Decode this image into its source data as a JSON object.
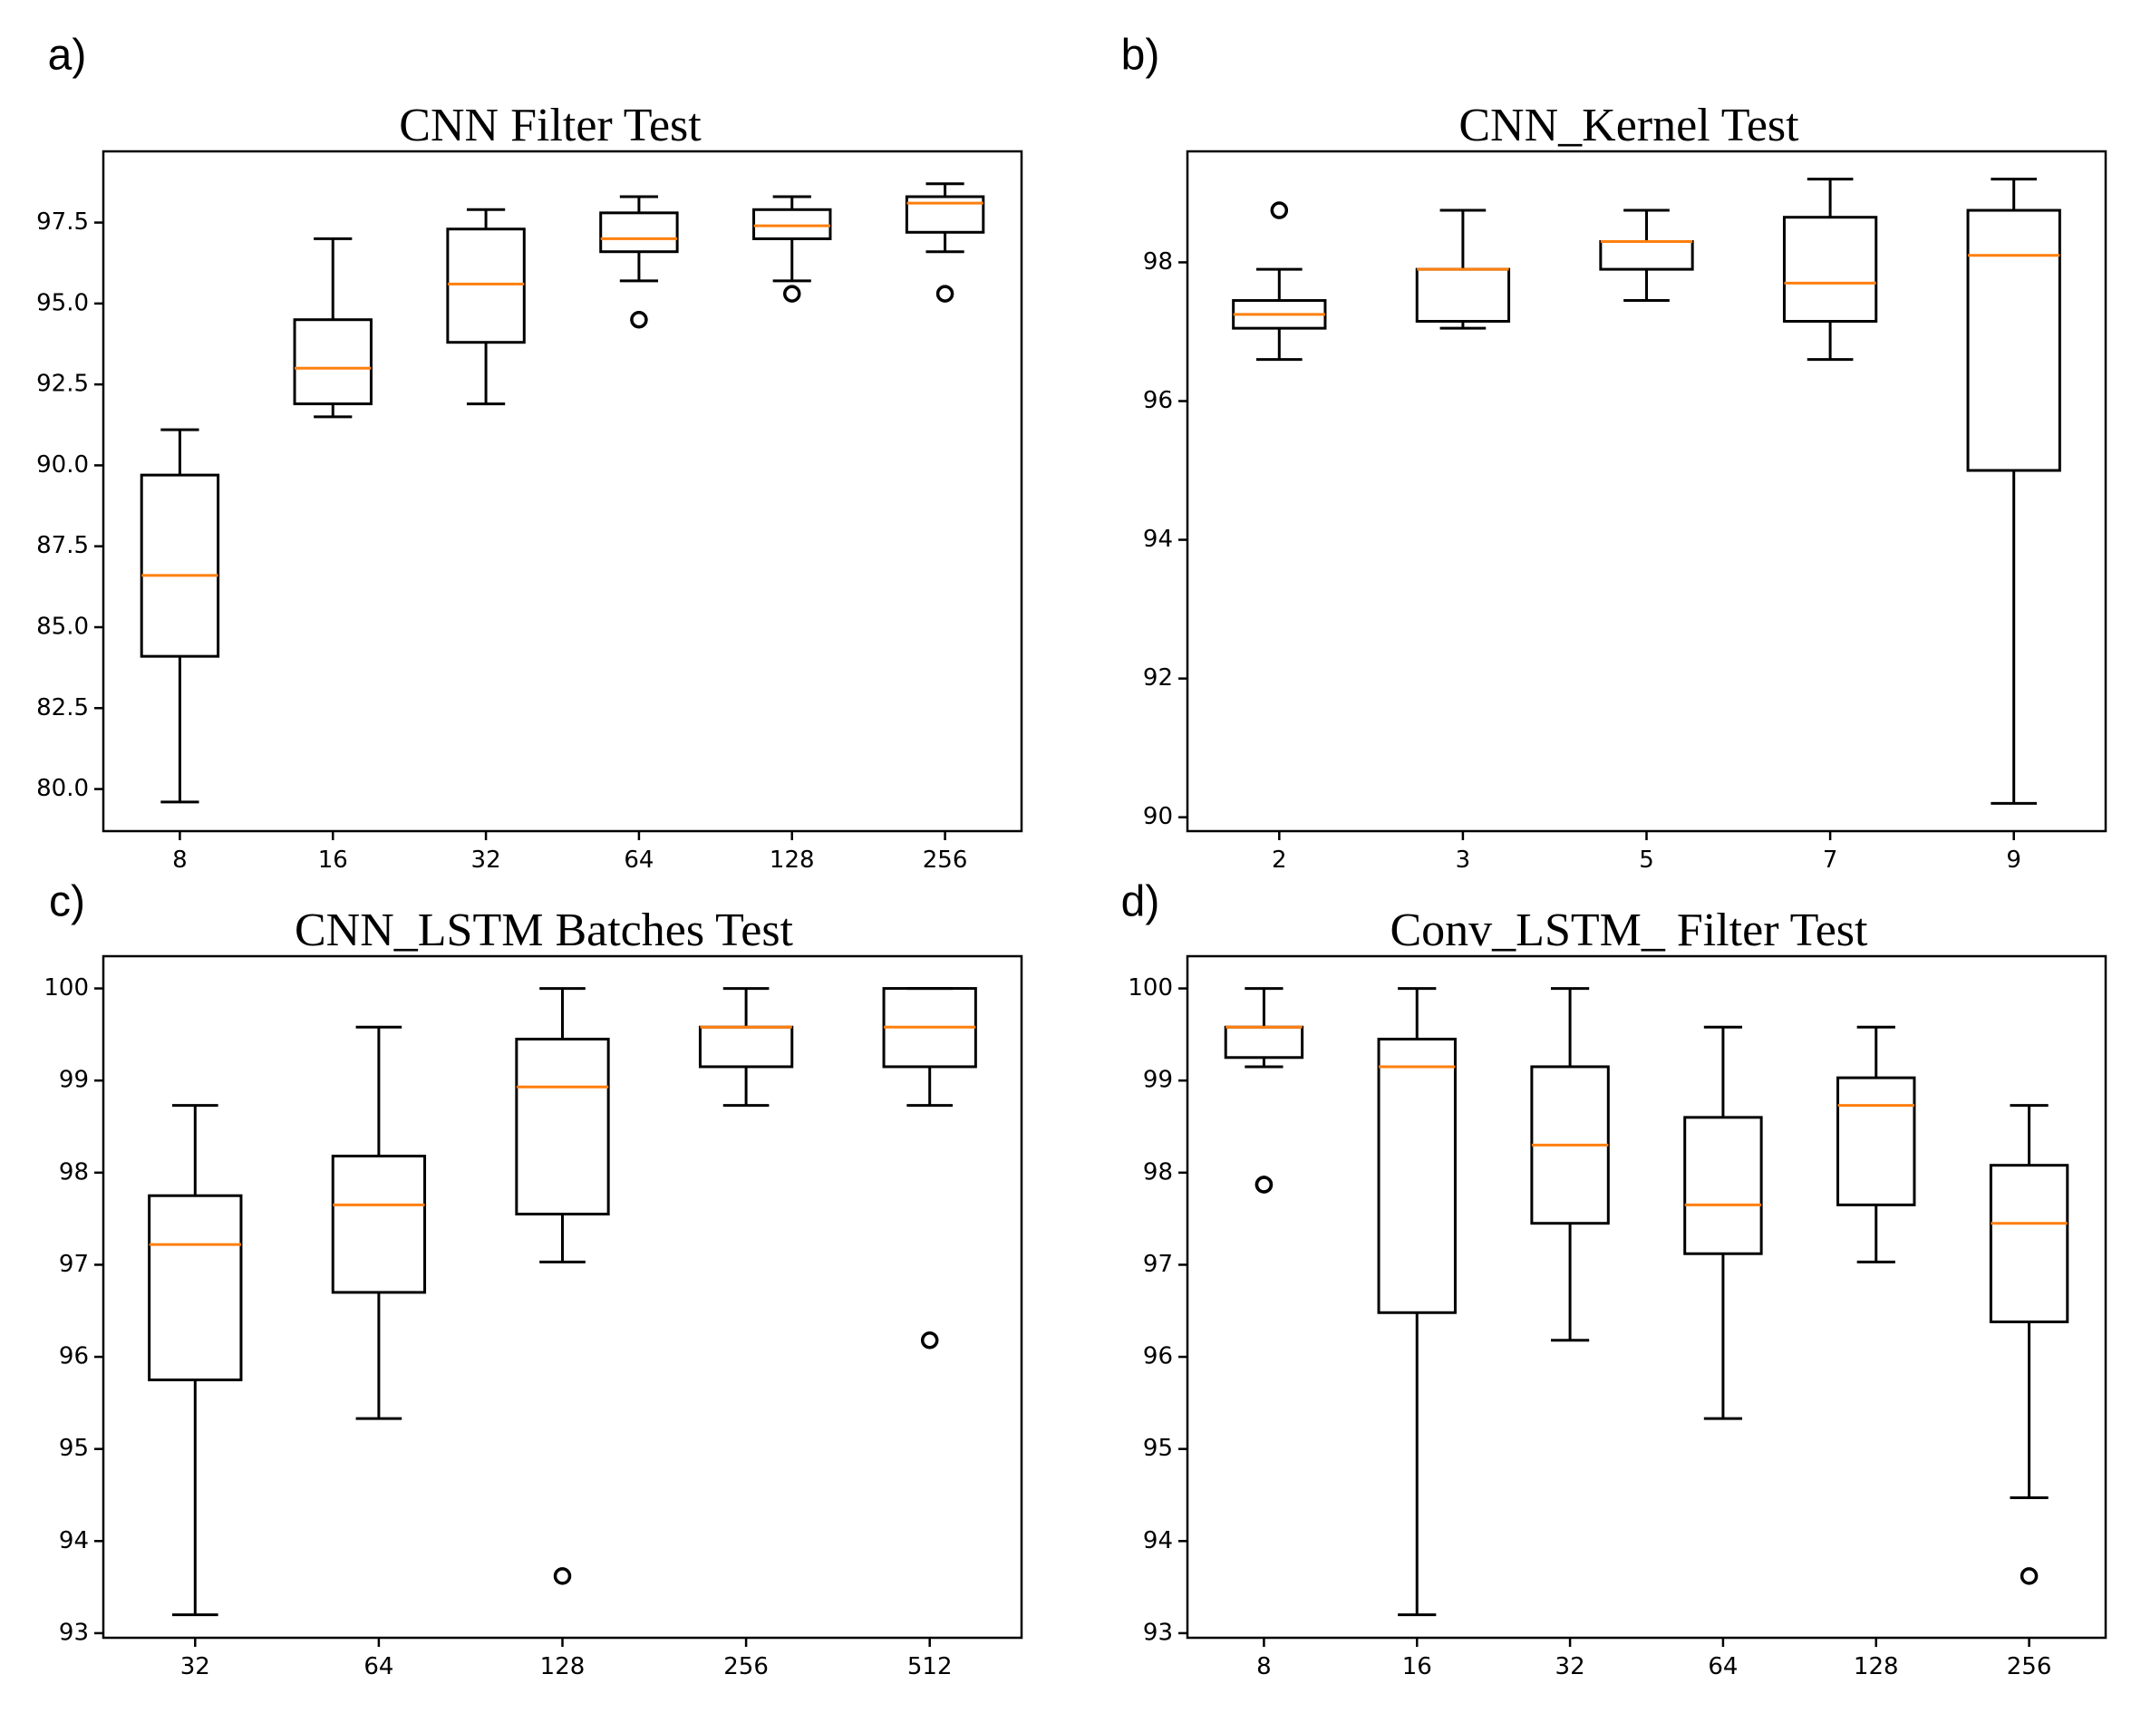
{
  "chart_data": [
    {
      "type": "boxplot",
      "panel_letter": "a)",
      "title": "CNN Filter Test",
      "categories": [
        "8",
        "16",
        "32",
        "64",
        "128",
        "256"
      ],
      "ylim": [
        78.7,
        99.7
      ],
      "yticks": [
        80.0,
        82.5,
        85.0,
        87.5,
        90.0,
        92.5,
        95.0,
        97.5
      ],
      "ytick_labels": [
        "80.0",
        "82.5",
        "85.0",
        "87.5",
        "90.0",
        "92.5",
        "95.0",
        "97.5"
      ],
      "boxes": [
        {
          "whislo": 79.6,
          "q1": 84.1,
          "med": 86.6,
          "q3": 89.7,
          "whishi": 91.1,
          "fliers": []
        },
        {
          "whislo": 91.5,
          "q1": 91.9,
          "med": 93.0,
          "q3": 94.5,
          "whishi": 97.0,
          "fliers": []
        },
        {
          "whislo": 91.9,
          "q1": 93.8,
          "med": 95.6,
          "q3": 97.3,
          "whishi": 97.9,
          "fliers": []
        },
        {
          "whislo": 95.7,
          "q1": 96.6,
          "med": 97.0,
          "q3": 97.8,
          "whishi": 98.3,
          "fliers": [
            94.5
          ]
        },
        {
          "whislo": 95.7,
          "q1": 97.0,
          "med": 97.4,
          "q3": 97.9,
          "whishi": 98.3,
          "fliers": [
            95.3
          ]
        },
        {
          "whislo": 96.6,
          "q1": 97.2,
          "med": 98.1,
          "q3": 98.3,
          "whishi": 98.7,
          "fliers": [
            95.3
          ]
        }
      ]
    },
    {
      "type": "boxplot",
      "panel_letter": "b)",
      "title": "CNN_Kernel Test",
      "categories": [
        "2",
        "3",
        "5",
        "7",
        "9"
      ],
      "ylim": [
        89.8,
        99.6
      ],
      "yticks": [
        90,
        92,
        94,
        96,
        98
      ],
      "ytick_labels": [
        "90",
        "92",
        "94",
        "96",
        "98"
      ],
      "boxes": [
        {
          "whislo": 96.6,
          "q1": 97.05,
          "med": 97.25,
          "q3": 97.45,
          "whishi": 97.9,
          "fliers": [
            98.75
          ]
        },
        {
          "whislo": 97.05,
          "q1": 97.15,
          "med": 97.9,
          "q3": 97.9,
          "whishi": 98.75,
          "fliers": []
        },
        {
          "whislo": 97.45,
          "q1": 97.9,
          "med": 98.3,
          "q3": 98.3,
          "whishi": 98.75,
          "fliers": []
        },
        {
          "whislo": 96.6,
          "q1": 97.15,
          "med": 97.7,
          "q3": 98.65,
          "whishi": 99.2,
          "fliers": []
        },
        {
          "whislo": 90.2,
          "q1": 95.0,
          "med": 98.1,
          "q3": 98.75,
          "whishi": 99.2,
          "fliers": []
        }
      ]
    },
    {
      "type": "boxplot",
      "panel_letter": "c)",
      "title": "CNN_LSTM Batches Test",
      "categories": [
        "32",
        "64",
        "128",
        "256",
        "512"
      ],
      "ylim": [
        92.95,
        100.35
      ],
      "yticks": [
        93,
        94,
        95,
        96,
        97,
        98,
        99,
        100
      ],
      "ytick_labels": [
        "93",
        "94",
        "95",
        "96",
        "97",
        "98",
        "99",
        "100"
      ],
      "boxes": [
        {
          "whislo": 93.2,
          "q1": 95.75,
          "med": 97.22,
          "q3": 97.75,
          "whishi": 98.73,
          "fliers": []
        },
        {
          "whislo": 95.33,
          "q1": 96.7,
          "med": 97.65,
          "q3": 98.18,
          "whishi": 99.58,
          "fliers": []
        },
        {
          "whislo": 97.03,
          "q1": 97.55,
          "med": 98.93,
          "q3": 99.45,
          "whishi": 100.0,
          "fliers": [
            93.62
          ]
        },
        {
          "whislo": 98.73,
          "q1": 99.15,
          "med": 99.58,
          "q3": 99.58,
          "whishi": 100.0,
          "fliers": []
        },
        {
          "whislo": 98.73,
          "q1": 99.15,
          "med": 99.58,
          "q3": 100.0,
          "whishi": 100.0,
          "fliers": [
            96.18
          ]
        }
      ]
    },
    {
      "type": "boxplot",
      "panel_letter": "d)",
      "title": "Conv_LSTM_ Filter Test",
      "categories": [
        "8",
        "16",
        "32",
        "64",
        "128",
        "256"
      ],
      "ylim": [
        92.95,
        100.35
      ],
      "yticks": [
        93,
        94,
        95,
        96,
        97,
        98,
        99,
        100
      ],
      "ytick_labels": [
        "93",
        "94",
        "95",
        "96",
        "97",
        "98",
        "99",
        "100"
      ],
      "boxes": [
        {
          "whislo": 99.15,
          "q1": 99.25,
          "med": 99.58,
          "q3": 99.58,
          "whishi": 100.0,
          "fliers": [
            97.87,
            97.87
          ]
        },
        {
          "whislo": 93.2,
          "q1": 96.48,
          "med": 99.15,
          "q3": 99.45,
          "whishi": 100.0,
          "fliers": []
        },
        {
          "whislo": 96.18,
          "q1": 97.45,
          "med": 98.3,
          "q3": 99.15,
          "whishi": 100.0,
          "fliers": []
        },
        {
          "whislo": 95.33,
          "q1": 97.12,
          "med": 97.65,
          "q3": 98.6,
          "whishi": 99.58,
          "fliers": []
        },
        {
          "whislo": 97.03,
          "q1": 97.65,
          "med": 98.73,
          "q3": 99.03,
          "whishi": 99.58,
          "fliers": []
        },
        {
          "whislo": 94.47,
          "q1": 96.38,
          "med": 97.45,
          "q3": 98.08,
          "whishi": 98.73,
          "fliers": [
            93.62
          ]
        }
      ]
    }
  ]
}
